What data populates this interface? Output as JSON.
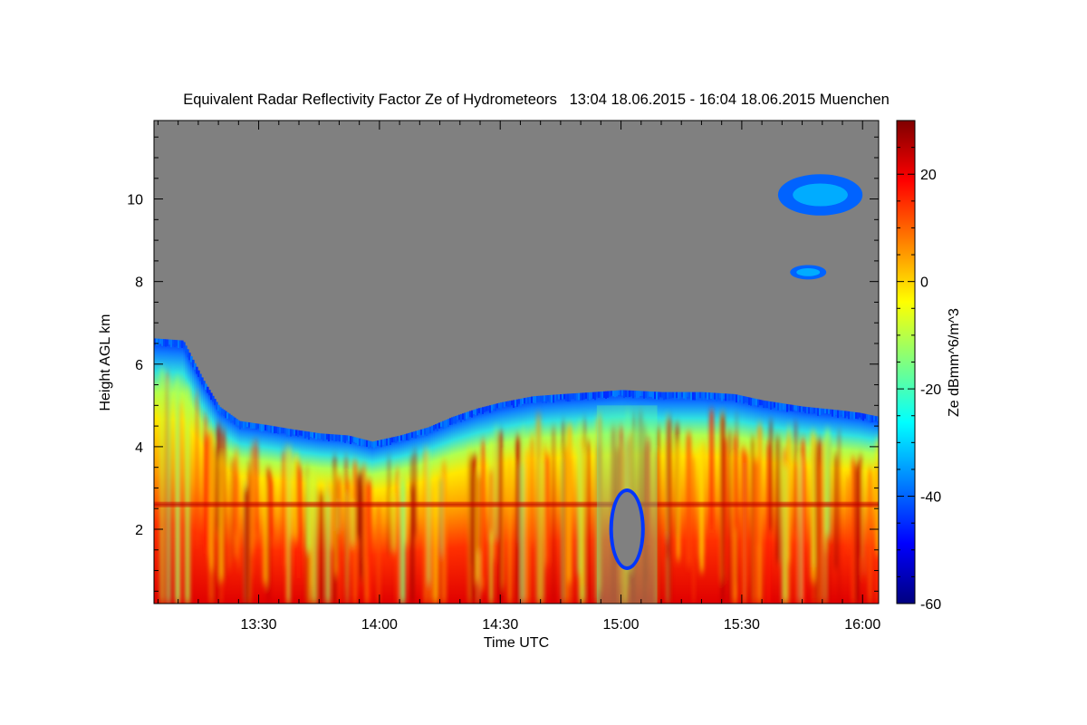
{
  "chart_data": {
    "type": "heatmap",
    "title": "Equivalent Radar Reflectivity Factor Ze of Hydrometeors   13:04 18.06.2015 - 16:04 18.06.2015 Muenchen",
    "xlabel": "Time UTC",
    "ylabel": "Height AGL km",
    "colorbar_label": "Ze dBmm^6/m^3",
    "xlim_minutes_utc": [
      784,
      964
    ],
    "ylim_km": [
      0.2,
      11.9
    ],
    "x_ticks": [
      {
        "minute": 810,
        "label": "13:30"
      },
      {
        "minute": 840,
        "label": "14:00"
      },
      {
        "minute": 870,
        "label": "14:30"
      },
      {
        "minute": 900,
        "label": "15:00"
      },
      {
        "minute": 930,
        "label": "15:30"
      },
      {
        "minute": 960,
        "label": "16:00"
      }
    ],
    "y_ticks": [
      2,
      4,
      6,
      8,
      10
    ],
    "colorbar_range": [
      -60,
      30
    ],
    "colorbar_ticks": [
      20,
      0,
      -20,
      -40,
      -60
    ],
    "colormap": "jet",
    "background_color": "#808080",
    "melting_layer_km": 2.6,
    "main_echo_top_km": [
      [
        784,
        6.6
      ],
      [
        791,
        6.55
      ],
      [
        796,
        5.6
      ],
      [
        800,
        4.95
      ],
      [
        805,
        4.6
      ],
      [
        812,
        4.5
      ],
      [
        818,
        4.4
      ],
      [
        825,
        4.3
      ],
      [
        832,
        4.25
      ],
      [
        838,
        4.1
      ],
      [
        845,
        4.25
      ],
      [
        852,
        4.45
      ],
      [
        858,
        4.7
      ],
      [
        864,
        4.9
      ],
      [
        870,
        5.05
      ],
      [
        878,
        5.2
      ],
      [
        885,
        5.25
      ],
      [
        893,
        5.3
      ],
      [
        900,
        5.35
      ],
      [
        910,
        5.3
      ],
      [
        920,
        5.3
      ],
      [
        928,
        5.25
      ],
      [
        935,
        5.1
      ],
      [
        945,
        4.95
      ],
      [
        955,
        4.85
      ],
      [
        959,
        4.8
      ],
      [
        964,
        4.7
      ]
    ],
    "features": [
      {
        "name": "upper cirrus cloud",
        "minute_range": [
          939,
          960
        ],
        "height_km_range": [
          9.6,
          10.6
        ],
        "ze_dbz": -40
      },
      {
        "name": "small cloud fragment",
        "minute_range": [
          942,
          951
        ],
        "height_km_range": [
          8.05,
          8.4
        ],
        "ze_dbz": -40
      },
      {
        "name": "no-echo gap",
        "minute_range": [
          898,
          905
        ],
        "height_km_range": [
          1.1,
          2.9
        ],
        "ze_dbz": null
      }
    ]
  }
}
